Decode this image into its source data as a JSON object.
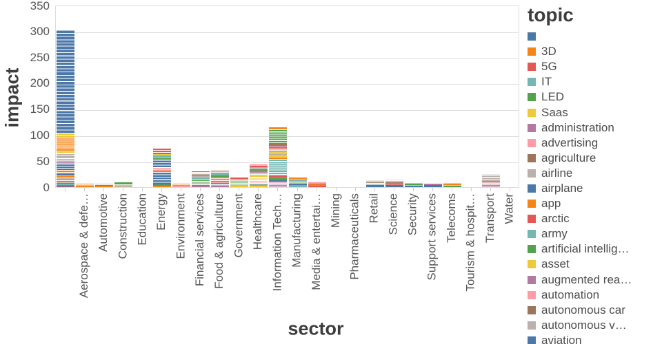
{
  "palette": [
    "#4C78A8",
    "#F58518",
    "#E45756",
    "#72B7B2",
    "#54A24B",
    "#EECA3B",
    "#B279A2",
    "#FF9DA6",
    "#9D755D",
    "#BAB0AC"
  ],
  "chart_data": {
    "type": "bar",
    "stacked": true,
    "title": "",
    "xlabel": "sector",
    "ylabel": "impact",
    "legend_title": "topic",
    "legend_position": "right",
    "grid": true,
    "ylim": [
      0,
      350
    ],
    "yticks": [
      0,
      50,
      100,
      150,
      200,
      250,
      300,
      350
    ],
    "categories": [
      "",
      "Aerospace & defe…",
      "Automotive",
      "Construction",
      "Education",
      "Energy",
      "Environment",
      "Financial services",
      "Food & agriculture",
      "Government",
      "Healthcare",
      "Information Tech…",
      "Manufacturing",
      "Media & entertai…",
      "Mining",
      "Pharmaceuticals",
      "Retail",
      "Science",
      "Security",
      "Support services",
      "Telecoms",
      "Tourism & hospit…",
      "Transport",
      "Water"
    ],
    "totals": [
      302,
      6,
      7,
      8,
      0,
      75,
      6,
      30,
      32,
      18,
      45,
      114,
      18,
      10,
      0,
      0,
      13,
      15,
      7,
      6,
      7,
      0,
      25,
      0
    ],
    "legend_items": [
      {
        "label": "",
        "color_index": 0
      },
      {
        "label": "3D",
        "color_index": 1
      },
      {
        "label": "5G",
        "color_index": 2
      },
      {
        "label": "IT",
        "color_index": 3
      },
      {
        "label": "LED",
        "color_index": 4
      },
      {
        "label": "Saas",
        "color_index": 5
      },
      {
        "label": "administration",
        "color_index": 6
      },
      {
        "label": "advertising",
        "color_index": 7
      },
      {
        "label": "agriculture",
        "color_index": 8
      },
      {
        "label": "airline",
        "color_index": 9
      },
      {
        "label": "airplane",
        "color_index": 0
      },
      {
        "label": "app",
        "color_index": 1
      },
      {
        "label": "arctic",
        "color_index": 2
      },
      {
        "label": "army",
        "color_index": 3
      },
      {
        "label": "artificial intellig…",
        "color_index": 4
      },
      {
        "label": "asset",
        "color_index": 5
      },
      {
        "label": "augmented rea…",
        "color_index": 6
      },
      {
        "label": "automation",
        "color_index": 7
      },
      {
        "label": "autonomous car",
        "color_index": 8
      },
      {
        "label": "autonomous v…",
        "color_index": 9
      },
      {
        "label": "aviation",
        "color_index": 0
      }
    ],
    "bars": [
      {
        "sector": "",
        "total": 302,
        "segments": [
          [
            0,
            1
          ],
          [
            2,
            2.6
          ],
          [
            3,
            1.8
          ],
          [
            8,
            13,
            4
          ],
          [
            1,
            4
          ],
          [
            0,
            1.5
          ],
          [
            1,
            8,
            2
          ],
          [
            0,
            12,
            3
          ],
          [
            7,
            1.5
          ],
          [
            6,
            3.5
          ],
          [
            9,
            7,
            2
          ],
          [
            6,
            2
          ],
          [
            9,
            7,
            2
          ],
          [
            5,
            4
          ],
          [
            1,
            27,
            7
          ],
          [
            5,
            8,
            2
          ],
          [
            0,
            198,
            32
          ]
        ]
      },
      {
        "sector": "Aerospace & defe…",
        "total": 6,
        "segments": [
          [
            1,
            2
          ],
          [
            5,
            2
          ],
          [
            1,
            2
          ]
        ]
      },
      {
        "sector": "Automotive",
        "total": 7,
        "segments": [
          [
            1,
            2
          ],
          [
            8,
            5,
            2
          ]
        ]
      },
      {
        "sector": "Construction",
        "total": 8,
        "segments": [
          [
            8,
            5,
            2
          ],
          [
            4,
            3
          ]
        ]
      },
      {
        "sector": "Education",
        "total": 0,
        "segments": []
      },
      {
        "sector": "Energy",
        "total": 75,
        "segments": [
          [
            1,
            2
          ],
          [
            4,
            3
          ],
          [
            0,
            24,
            5
          ],
          [
            1,
            2
          ],
          [
            7,
            7,
            2
          ],
          [
            0,
            14,
            3
          ],
          [
            4,
            4
          ],
          [
            3,
            3
          ],
          [
            9,
            2
          ],
          [
            5,
            2
          ],
          [
            2,
            12,
            3
          ]
        ]
      },
      {
        "sector": "Environment",
        "total": 6,
        "segments": [
          [
            7,
            2
          ],
          [
            3,
            2
          ],
          [
            1,
            2
          ]
        ]
      },
      {
        "sector": "Financial services",
        "total": 30,
        "segments": [
          [
            6,
            2
          ],
          [
            4,
            12,
            4
          ],
          [
            3,
            3
          ],
          [
            9,
            3
          ],
          [
            1,
            3
          ],
          [
            9,
            5,
            2
          ],
          [
            8,
            2
          ]
        ]
      },
      {
        "sector": "Food & agriculture",
        "total": 32,
        "segments": [
          [
            6,
            2
          ],
          [
            7,
            2
          ],
          [
            3,
            2
          ],
          [
            2,
            10,
            3
          ],
          [
            1,
            3
          ],
          [
            4,
            3
          ],
          [
            3,
            2
          ],
          [
            9,
            2
          ],
          [
            8,
            6,
            2
          ]
        ]
      },
      {
        "sector": "Government",
        "total": 18,
        "segments": [
          [
            5,
            2
          ],
          [
            7,
            2
          ],
          [
            4,
            9,
            3
          ],
          [
            7,
            2
          ],
          [
            2,
            3
          ]
        ]
      },
      {
        "sector": "Healthcare",
        "total": 45,
        "segments": [
          [
            5,
            2
          ],
          [
            3,
            2.5
          ],
          [
            7,
            5,
            2
          ],
          [
            5,
            12,
            4
          ],
          [
            4,
            6,
            2
          ],
          [
            6,
            3
          ],
          [
            4,
            5
          ],
          [
            9,
            2
          ],
          [
            2,
            4
          ],
          [
            7,
            3.5
          ]
        ]
      },
      {
        "sector": "Information Tech…",
        "total": 114,
        "segments": [
          [
            6,
            8,
            3
          ],
          [
            7,
            2
          ],
          [
            0,
            3
          ],
          [
            4,
            3
          ],
          [
            1,
            2
          ],
          [
            2,
            3
          ],
          [
            3,
            33,
            8
          ],
          [
            1,
            4
          ],
          [
            5,
            3
          ],
          [
            9,
            4
          ],
          [
            5,
            3
          ],
          [
            8,
            5,
            2
          ],
          [
            2,
            4
          ],
          [
            6,
            2
          ],
          [
            2,
            3
          ],
          [
            4,
            29,
            7
          ],
          [
            1,
            3
          ]
        ]
      },
      {
        "sector": "Manufacturing",
        "total": 18,
        "segments": [
          [
            3,
            3
          ],
          [
            0,
            3
          ],
          [
            4,
            4,
            2
          ],
          [
            3,
            3
          ],
          [
            7,
            2
          ],
          [
            1,
            3
          ]
        ]
      },
      {
        "sector": "Media & entertai…",
        "total": 10,
        "segments": [
          [
            2,
            2
          ],
          [
            1,
            2.5
          ],
          [
            2,
            2
          ],
          [
            7,
            3.5
          ]
        ]
      },
      {
        "sector": "Mining",
        "total": 0,
        "segments": []
      },
      {
        "sector": "Pharmaceuticals",
        "total": 0,
        "segments": []
      },
      {
        "sector": "Retail",
        "total": 13,
        "segments": [
          [
            0,
            3
          ],
          [
            3,
            4,
            2
          ],
          [
            8,
            6,
            2
          ]
        ]
      },
      {
        "sector": "Science",
        "total": 15,
        "segments": [
          [
            0,
            3
          ],
          [
            2,
            3.5
          ],
          [
            8,
            3.5
          ],
          [
            7,
            5,
            2
          ]
        ]
      },
      {
        "sector": "Security",
        "total": 7,
        "segments": [
          [
            0,
            3.5
          ],
          [
            4,
            3.5
          ]
        ]
      },
      {
        "sector": "Support services",
        "total": 6,
        "segments": [
          [
            0,
            3
          ],
          [
            6,
            3
          ]
        ]
      },
      {
        "sector": "Telecoms",
        "total": 7,
        "segments": [
          [
            4,
            3.5
          ],
          [
            1,
            3.5
          ]
        ]
      },
      {
        "sector": "Tourism & hospit…",
        "total": 0,
        "segments": []
      },
      {
        "sector": "Transport",
        "total": 25,
        "segments": [
          [
            6,
            8,
            3
          ],
          [
            1,
            3
          ],
          [
            9,
            14,
            4
          ]
        ]
      },
      {
        "sector": "Water",
        "total": 0,
        "segments": []
      }
    ]
  }
}
